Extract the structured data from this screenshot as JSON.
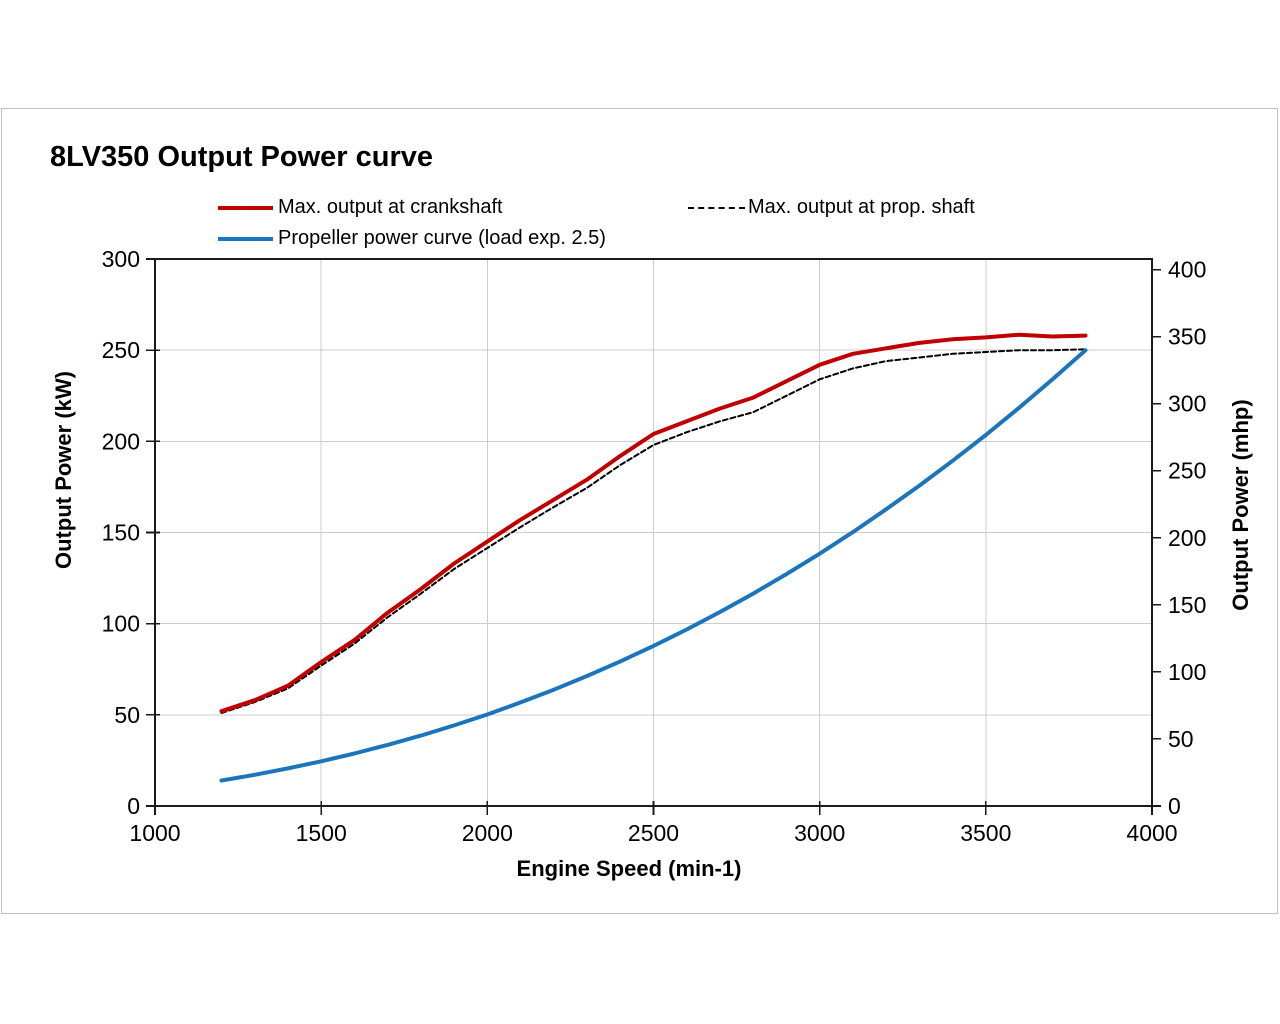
{
  "chart_data": {
    "type": "line",
    "title": "8LV350 Output Power curve",
    "xlabel": "Engine Speed (min-1)",
    "ylabel_left": "Output Power (kW)",
    "ylabel_right": "Output Power (mhp)",
    "xlim": [
      1000,
      4000
    ],
    "xticks": [
      1000,
      1500,
      2000,
      2500,
      3000,
      3500,
      4000
    ],
    "ylim_left": [
      0,
      300
    ],
    "yticks_left": [
      0,
      50,
      100,
      150,
      200,
      250,
      300
    ],
    "ylim_right": [
      0,
      400
    ],
    "yticks_right": [
      0,
      50,
      100,
      150,
      200,
      250,
      300,
      350,
      400
    ],
    "mhp_to_kw": 0.7355,
    "grid": true,
    "legend_position": "top",
    "colors": {
      "grid": "#cccccc",
      "axis_frame": "#1a1a1a",
      "chart_border": "#c0c0c0"
    },
    "series": [
      {
        "name": "Max. output at crankshaft",
        "color": "#c00000",
        "dash": "",
        "width": 4,
        "x": [
          1200,
          1300,
          1400,
          1500,
          1600,
          1700,
          1800,
          1900,
          2000,
          2100,
          2200,
          2300,
          2400,
          2500,
          2600,
          2700,
          2800,
          2900,
          3000,
          3100,
          3200,
          3300,
          3400,
          3500,
          3600,
          3700,
          3800
        ],
        "y": [
          52,
          58,
          66,
          79,
          91,
          106,
          119,
          133,
          145,
          157,
          168,
          179,
          192,
          204,
          211,
          218,
          224,
          233,
          242,
          248,
          251,
          254,
          256,
          257,
          258.5,
          257.5,
          258
        ]
      },
      {
        "name": "Max. output at prop. shaft",
        "color": "#000000",
        "dash": "5 3",
        "width": 2,
        "x": [
          1200,
          1300,
          1400,
          1500,
          1600,
          1700,
          1800,
          1900,
          2000,
          2100,
          2200,
          2300,
          2400,
          2500,
          2600,
          2700,
          2800,
          2900,
          3000,
          3100,
          3200,
          3300,
          3400,
          3500,
          3600,
          3700,
          3800
        ],
        "y": [
          51,
          57,
          64.5,
          77,
          89,
          103.5,
          116.5,
          130,
          141.5,
          153,
          164,
          174.5,
          187,
          198,
          205,
          211,
          216,
          225,
          234,
          240,
          244,
          246,
          248,
          249,
          250,
          250,
          250.5
        ]
      },
      {
        "name": "Propeller power curve (load exp. 2.5)",
        "color": "#1b75bc",
        "dash": "",
        "width": 4,
        "x": [
          1200,
          1300,
          1400,
          1500,
          1600,
          1700,
          1800,
          1900,
          2000,
          2100,
          2200,
          2300,
          2400,
          2500,
          2600,
          2700,
          2800,
          2900,
          3000,
          3100,
          3200,
          3300,
          3400,
          3500,
          3600,
          3700,
          3800
        ],
        "y": [
          14,
          17.1,
          20.6,
          24.5,
          28.8,
          33.5,
          38.6,
          44.2,
          50.2,
          56.8,
          63.8,
          71.3,
          79.3,
          87.8,
          96.8,
          106.4,
          116.5,
          127.2,
          138.4,
          150.2,
          162.7,
          175.7,
          189.3,
          203.5,
          218.4,
          233.9,
          250
        ]
      }
    ]
  }
}
